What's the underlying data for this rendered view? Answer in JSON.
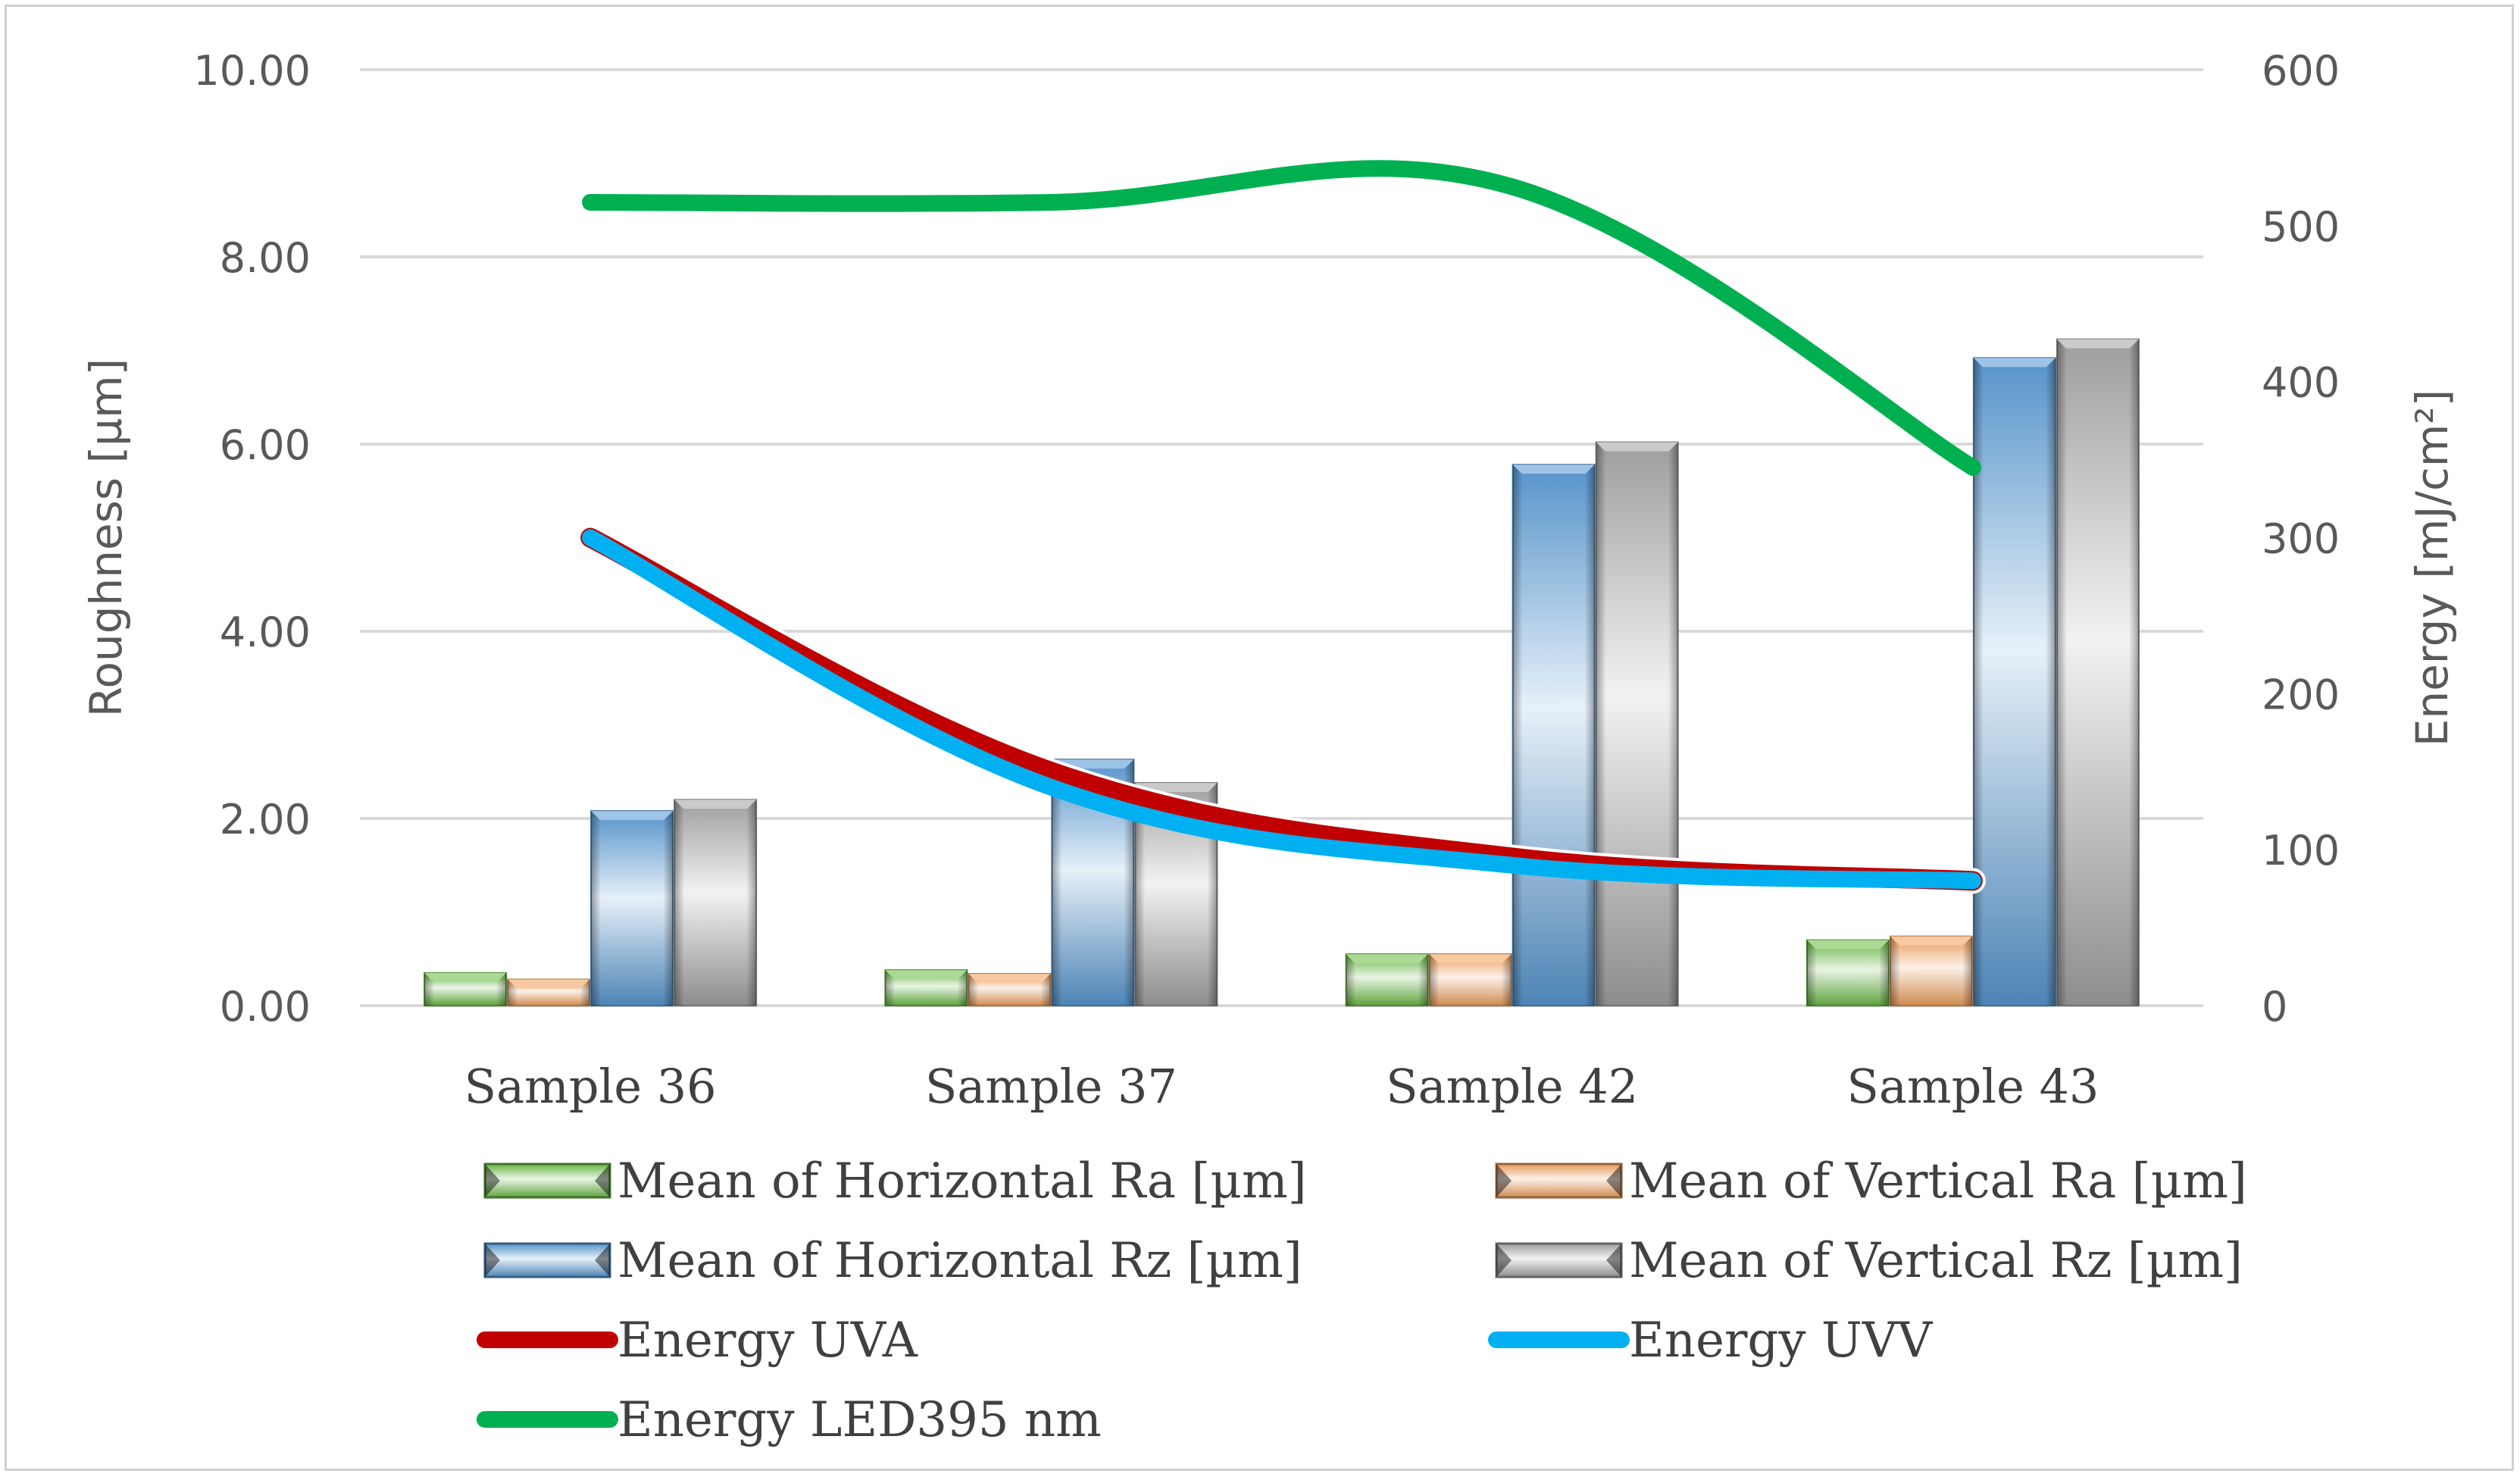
{
  "chart_data": {
    "type": "bar",
    "title": "",
    "categories": [
      "Sample 36",
      "Sample 37",
      "Sample 42",
      "Sample 43"
    ],
    "y_left": {
      "label": "Roughness [µm]",
      "range": [
        0,
        10
      ],
      "ticks": [
        "0.00",
        "2.00",
        "4.00",
        "6.00",
        "8.00",
        "10.00"
      ],
      "grid": true
    },
    "y_right": {
      "label": "Energy  [mJ/cm²]",
      "range": [
        0,
        600
      ],
      "ticks": [
        "0",
        "100",
        "200",
        "300",
        "400",
        "500",
        "600"
      ]
    },
    "bar_series": [
      {
        "name": "Mean of Horizontal Ra [µm]",
        "axis": "left",
        "values": [
          0.35,
          0.38,
          0.55,
          0.7
        ],
        "color": "#6fbf4a"
      },
      {
        "name": "Mean of Vertical Ra [µm]",
        "axis": "left",
        "values": [
          0.28,
          0.34,
          0.55,
          0.74
        ],
        "color": "#f4a460"
      },
      {
        "name": "Mean of Horizontal Rz [µm]",
        "axis": "left",
        "values": [
          2.08,
          2.63,
          5.78,
          6.92
        ],
        "color": "#5b9bd5"
      },
      {
        "name": "Mean of Vertical Rz [µm]",
        "axis": "left",
        "values": [
          2.2,
          2.38,
          6.02,
          7.12
        ],
        "color": "#a6a6a6"
      }
    ],
    "line_series": [
      {
        "name": "Energy UVA",
        "axis": "right",
        "values": [
          300,
          150,
          95,
          80
        ],
        "color": "#c00000"
      },
      {
        "name": "Energy UVV",
        "axis": "right",
        "values": [
          300,
          140,
          90,
          80
        ],
        "color": "#00b0f0"
      },
      {
        "name": "Energy LED395  nm",
        "axis": "right",
        "values": [
          515,
          515,
          525,
          345
        ],
        "color": "#00b050"
      }
    ],
    "legend_position": "bottom"
  }
}
